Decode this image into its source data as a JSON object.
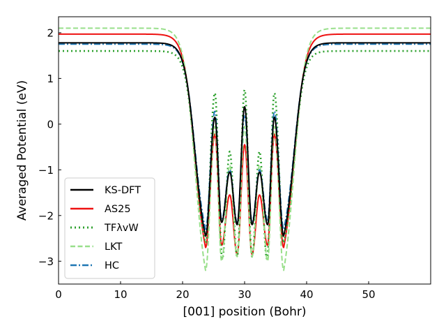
{
  "chart_data": {
    "type": "line",
    "xlabel": "[001] position (Bohr)",
    "ylabel": "Averaged Potential (eV)",
    "xlim": [
      0,
      60
    ],
    "ylim": [
      -3.5,
      2.35
    ],
    "xticks": [
      0,
      10,
      20,
      30,
      40,
      50
    ],
    "yticks": [
      -3,
      -2,
      -1,
      0,
      1,
      2
    ],
    "xtick_labels": [
      "0",
      "10",
      "20",
      "30",
      "40",
      "50"
    ],
    "ytick_labels": [
      "−3",
      "−2",
      "−1",
      "0",
      "1",
      "2"
    ],
    "grid": false,
    "legend_position": "lower-left",
    "series": [
      {
        "name": "KS-DFT",
        "color": "#000000",
        "style": "solid",
        "plateau": 1.78,
        "wall": 1.7,
        "points": [
          [
            23.7,
            -2.45
          ],
          [
            25.2,
            0.15
          ],
          [
            26.3,
            -2.15
          ],
          [
            27.6,
            -1.05
          ],
          [
            28.8,
            -2.2
          ],
          [
            30.0,
            0.38
          ],
          [
            31.2,
            -2.2
          ],
          [
            32.4,
            -1.05
          ],
          [
            33.7,
            -2.2
          ],
          [
            34.8,
            0.15
          ],
          [
            36.3,
            -2.45
          ]
        ]
      },
      {
        "name": "AS25",
        "color": "#ee1111",
        "style": "solid",
        "plateau": 1.97,
        "wall": 1.8,
        "points": [
          [
            23.7,
            -2.7
          ],
          [
            25.2,
            -0.22
          ],
          [
            26.3,
            -2.65
          ],
          [
            27.6,
            -1.55
          ],
          [
            28.8,
            -2.85
          ],
          [
            30.0,
            -0.45
          ],
          [
            31.2,
            -2.85
          ],
          [
            32.4,
            -1.55
          ],
          [
            33.7,
            -2.65
          ],
          [
            34.8,
            -0.22
          ],
          [
            36.3,
            -2.7
          ]
        ]
      },
      {
        "name": "TFλvW",
        "color": "#2ca02c",
        "style": "dotted",
        "plateau": 1.6,
        "wall": 1.6,
        "points": [
          [
            23.7,
            -2.6
          ],
          [
            25.2,
            0.68
          ],
          [
            26.4,
            -2.95
          ],
          [
            27.6,
            -0.6
          ],
          [
            28.8,
            -2.9
          ],
          [
            30.0,
            0.75
          ],
          [
            31.2,
            -2.9
          ],
          [
            32.4,
            -0.6
          ],
          [
            33.6,
            -2.95
          ],
          [
            34.8,
            0.68
          ],
          [
            36.3,
            -2.6
          ]
        ]
      },
      {
        "name": "LKT",
        "color": "#98df8a",
        "style": "dashed",
        "plateau": 2.1,
        "wall": 1.8,
        "points": [
          [
            23.7,
            -3.2
          ],
          [
            25.2,
            -0.05
          ],
          [
            26.3,
            -3.0
          ],
          [
            27.6,
            -0.9
          ],
          [
            28.8,
            -2.9
          ],
          [
            30.0,
            -0.05
          ],
          [
            31.2,
            -2.9
          ],
          [
            32.4,
            -0.9
          ],
          [
            33.7,
            -3.0
          ],
          [
            34.8,
            -0.05
          ],
          [
            36.3,
            -3.2
          ]
        ]
      },
      {
        "name": "HC",
        "color": "#1f77b4",
        "style": "dashdot",
        "plateau": 1.75,
        "wall": 1.7,
        "points": [
          [
            23.7,
            -2.3
          ],
          [
            25.2,
            0.28
          ],
          [
            26.3,
            -2.1
          ],
          [
            27.6,
            -1.0
          ],
          [
            28.8,
            -2.15
          ],
          [
            30.0,
            0.2
          ],
          [
            31.2,
            -2.15
          ],
          [
            32.4,
            -1.0
          ],
          [
            33.7,
            -2.1
          ],
          [
            34.8,
            0.28
          ],
          [
            36.3,
            -2.3
          ]
        ]
      }
    ]
  }
}
